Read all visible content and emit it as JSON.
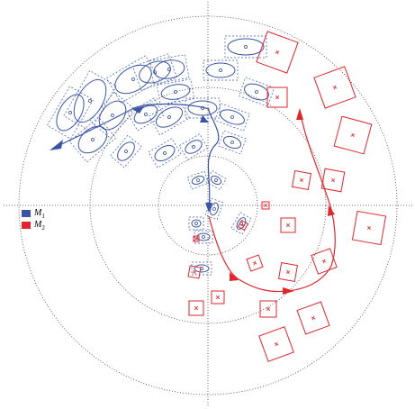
{
  "legend": {
    "items": [
      {
        "label": "M",
        "subscript": "1",
        "color": "#3a55a4"
      },
      {
        "label": "M",
        "subscript": "2",
        "color": "#e0262b"
      }
    ]
  }
}
